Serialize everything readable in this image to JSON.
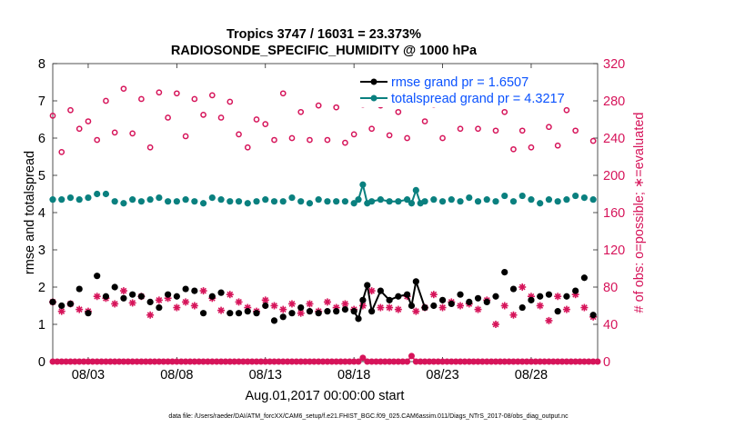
{
  "colors": {
    "rmse": "#000000",
    "totalspread": "#0a807f",
    "obs": "#d6145a",
    "legend_text": "#0a52ff"
  },
  "chart_data": {
    "type": "line",
    "title": "Tropics 3747 / 16031 = 23.373%",
    "subtitle": "RADIOSONDE_SPECIFIC_HUMIDITY @ 1000 hPa",
    "xlabel": "Aug.01,2017 00:00:00 start",
    "ylabel": "rmse and totalspread",
    "y2label": "# of obs: o=possible; ∗=evaluated",
    "footnote": "data file: /Users/raeder/DAI/ATM_forcXX/CAM6_setup/f.e21.FHIST_BGC.f09_025.CAM6assim.011/Diags_NTrS_2017-08/obs_diag_output.nc",
    "xlim": [
      1,
      31.75
    ],
    "ylim": [
      0,
      8
    ],
    "y2lim": [
      0,
      320
    ],
    "x_step_days": 0.25,
    "xticks": [
      3,
      8,
      13,
      18,
      23,
      28
    ],
    "xtick_labels": [
      "08/03",
      "08/08",
      "08/13",
      "08/18",
      "08/23",
      "08/28"
    ],
    "yticks": [
      0,
      1,
      2,
      3,
      4,
      5,
      6,
      7,
      8
    ],
    "ytick_labels": [
      "0",
      "1",
      "2",
      "3",
      "4",
      "5",
      "6",
      "7",
      "8"
    ],
    "y2ticks": [
      0,
      40,
      80,
      120,
      160,
      200,
      240,
      280,
      320
    ],
    "y2tick_labels": [
      "0",
      "40",
      "80",
      "120",
      "160",
      "200",
      "240",
      "280",
      "320"
    ],
    "legend": [
      "rmse grand pr = 1.6507",
      "totalspread grand pr = 4.3217"
    ],
    "legend_position": "top-right",
    "series": [
      {
        "name": "rmse",
        "axis": "left",
        "points": [
          [
            1.0,
            1.6
          ],
          [
            1.5,
            1.5
          ],
          [
            2.0,
            1.55
          ],
          [
            2.5,
            1.95
          ],
          [
            3.0,
            1.3
          ],
          [
            3.5,
            2.3
          ],
          [
            4.0,
            1.75
          ],
          [
            4.5,
            2.0
          ],
          [
            5.0,
            1.7
          ],
          [
            5.5,
            1.8
          ],
          [
            6.0,
            1.75
          ],
          [
            6.5,
            1.6
          ],
          [
            7.0,
            1.45
          ],
          [
            7.5,
            1.8
          ],
          [
            8.0,
            1.75
          ],
          [
            8.5,
            1.95
          ],
          [
            9.0,
            1.9
          ],
          [
            9.5,
            1.3
          ],
          [
            10.0,
            1.75
          ],
          [
            10.5,
            1.85
          ],
          [
            11.0,
            1.3
          ],
          [
            11.5,
            1.3
          ],
          [
            12.0,
            1.35
          ],
          [
            12.5,
            1.3
          ],
          [
            13.0,
            1.5
          ],
          [
            13.5,
            1.1
          ],
          [
            14.0,
            1.2
          ],
          [
            14.5,
            1.3
          ],
          [
            15.0,
            1.45
          ],
          [
            15.5,
            1.35
          ],
          [
            16.0,
            1.3
          ],
          [
            16.5,
            1.35
          ],
          [
            17.0,
            1.35
          ],
          [
            17.5,
            1.4
          ],
          [
            18.0,
            1.35
          ],
          [
            18.25,
            1.15
          ],
          [
            18.5,
            1.65
          ],
          [
            18.75,
            2.05
          ],
          [
            19.0,
            1.35
          ],
          [
            19.5,
            1.9
          ],
          [
            20.0,
            1.65
          ],
          [
            20.5,
            1.75
          ],
          [
            21.0,
            1.8
          ],
          [
            21.25,
            1.5
          ],
          [
            21.5,
            2.15
          ],
          [
            22.0,
            1.45
          ],
          [
            22.5,
            1.5
          ],
          [
            23.0,
            1.65
          ],
          [
            23.5,
            1.55
          ],
          [
            24.0,
            1.8
          ],
          [
            24.5,
            1.6
          ],
          [
            25.0,
            1.7
          ],
          [
            25.5,
            1.6
          ],
          [
            26.0,
            1.75
          ],
          [
            26.5,
            2.4
          ],
          [
            27.0,
            1.95
          ],
          [
            27.5,
            1.45
          ],
          [
            28.0,
            1.65
          ],
          [
            28.5,
            1.75
          ],
          [
            29.0,
            1.8
          ],
          [
            29.5,
            1.35
          ],
          [
            30.0,
            1.75
          ],
          [
            30.5,
            1.9
          ],
          [
            31.0,
            2.25
          ],
          [
            31.5,
            1.25
          ]
        ]
      },
      {
        "name": "totalspread",
        "axis": "left",
        "points": [
          [
            1.0,
            4.35
          ],
          [
            1.5,
            4.35
          ],
          [
            2.0,
            4.4
          ],
          [
            2.5,
            4.35
          ],
          [
            3.0,
            4.4
          ],
          [
            3.5,
            4.5
          ],
          [
            4.0,
            4.5
          ],
          [
            4.5,
            4.3
          ],
          [
            5.0,
            4.25
          ],
          [
            5.5,
            4.35
          ],
          [
            6.0,
            4.3
          ],
          [
            6.5,
            4.35
          ],
          [
            7.0,
            4.4
          ],
          [
            7.5,
            4.3
          ],
          [
            8.0,
            4.3
          ],
          [
            8.5,
            4.35
          ],
          [
            9.0,
            4.3
          ],
          [
            9.5,
            4.25
          ],
          [
            10.0,
            4.4
          ],
          [
            10.5,
            4.35
          ],
          [
            11.0,
            4.3
          ],
          [
            11.5,
            4.3
          ],
          [
            12.0,
            4.25
          ],
          [
            12.5,
            4.3
          ],
          [
            13.0,
            4.35
          ],
          [
            13.5,
            4.3
          ],
          [
            14.0,
            4.3
          ],
          [
            14.5,
            4.4
          ],
          [
            15.0,
            4.3
          ],
          [
            15.5,
            4.25
          ],
          [
            16.0,
            4.35
          ],
          [
            16.5,
            4.3
          ],
          [
            17.0,
            4.3
          ],
          [
            17.5,
            4.3
          ],
          [
            18.0,
            4.25
          ],
          [
            18.25,
            4.35
          ],
          [
            18.5,
            4.75
          ],
          [
            18.75,
            4.25
          ],
          [
            19.0,
            4.3
          ],
          [
            19.5,
            4.35
          ],
          [
            20.0,
            4.3
          ],
          [
            20.5,
            4.3
          ],
          [
            21.0,
            4.35
          ],
          [
            21.25,
            4.25
          ],
          [
            21.5,
            4.6
          ],
          [
            21.75,
            4.25
          ],
          [
            22.0,
            4.3
          ],
          [
            22.5,
            4.35
          ],
          [
            23.0,
            4.3
          ],
          [
            23.5,
            4.35
          ],
          [
            24.0,
            4.3
          ],
          [
            24.5,
            4.4
          ],
          [
            25.0,
            4.3
          ],
          [
            25.5,
            4.35
          ],
          [
            26.0,
            4.3
          ],
          [
            26.5,
            4.45
          ],
          [
            27.0,
            4.3
          ],
          [
            27.5,
            4.45
          ],
          [
            28.0,
            4.35
          ],
          [
            28.5,
            4.25
          ],
          [
            29.0,
            4.35
          ],
          [
            29.5,
            4.3
          ],
          [
            30.0,
            4.35
          ],
          [
            30.5,
            4.45
          ],
          [
            31.0,
            4.4
          ],
          [
            31.5,
            4.35
          ]
        ]
      },
      {
        "name": "obs_possible",
        "axis": "right",
        "marker": "circle",
        "points": [
          [
            1.0,
            264
          ],
          [
            1.5,
            225
          ],
          [
            2.0,
            270
          ],
          [
            2.5,
            250
          ],
          [
            3.0,
            258
          ],
          [
            3.5,
            238
          ],
          [
            4.0,
            280
          ],
          [
            4.5,
            246
          ],
          [
            5.0,
            293
          ],
          [
            5.5,
            245
          ],
          [
            6.0,
            282
          ],
          [
            6.5,
            230
          ],
          [
            7.0,
            289
          ],
          [
            7.5,
            262
          ],
          [
            8.0,
            288
          ],
          [
            8.5,
            242
          ],
          [
            9.0,
            282
          ],
          [
            9.5,
            265
          ],
          [
            10.0,
            286
          ],
          [
            10.5,
            262
          ],
          [
            11.0,
            279
          ],
          [
            11.5,
            244
          ],
          [
            12.0,
            230
          ],
          [
            12.5,
            260
          ],
          [
            13.0,
            255
          ],
          [
            13.5,
            238
          ],
          [
            14.0,
            288
          ],
          [
            14.5,
            240
          ],
          [
            15.0,
            268
          ],
          [
            15.5,
            238
          ],
          [
            16.0,
            275
          ],
          [
            16.5,
            238
          ],
          [
            17.0,
            273
          ],
          [
            17.5,
            235
          ],
          [
            18.0,
            244
          ],
          [
            18.5,
            276
          ],
          [
            19.0,
            250
          ],
          [
            19.5,
            275
          ],
          [
            20.0,
            243
          ],
          [
            20.5,
            268
          ],
          [
            21.0,
            240
          ],
          [
            21.5,
            280
          ],
          [
            22.0,
            258
          ],
          [
            22.5,
            276
          ],
          [
            23.0,
            240
          ],
          [
            23.5,
            282
          ],
          [
            24.0,
            250
          ],
          [
            24.5,
            280
          ],
          [
            25.0,
            250
          ],
          [
            25.5,
            279
          ],
          [
            26.0,
            248
          ],
          [
            26.5,
            268
          ],
          [
            27.0,
            228
          ],
          [
            27.5,
            248
          ],
          [
            28.0,
            230
          ],
          [
            28.5,
            279
          ],
          [
            29.0,
            252
          ],
          [
            29.5,
            232
          ],
          [
            30.0,
            270
          ],
          [
            30.5,
            248
          ],
          [
            31.0,
            278
          ],
          [
            31.5,
            237
          ]
        ]
      },
      {
        "name": "obs_evaluated",
        "axis": "right",
        "marker": "asterisk",
        "points": [
          [
            1.0,
            64
          ],
          [
            1.5,
            54
          ],
          [
            2.0,
            62
          ],
          [
            2.5,
            56
          ],
          [
            3.0,
            54
          ],
          [
            3.5,
            70
          ],
          [
            4.0,
            68
          ],
          [
            4.5,
            62
          ],
          [
            5.0,
            76
          ],
          [
            5.5,
            63
          ],
          [
            6.0,
            70
          ],
          [
            6.5,
            50
          ],
          [
            7.0,
            66
          ],
          [
            7.5,
            68
          ],
          [
            8.0,
            58
          ],
          [
            8.5,
            64
          ],
          [
            9.0,
            60
          ],
          [
            9.5,
            76
          ],
          [
            10.0,
            68
          ],
          [
            10.5,
            55
          ],
          [
            11.0,
            72
          ],
          [
            11.5,
            64
          ],
          [
            12.0,
            58
          ],
          [
            12.5,
            54
          ],
          [
            13.0,
            66
          ],
          [
            13.5,
            60
          ],
          [
            14.0,
            56
          ],
          [
            14.5,
            62
          ],
          [
            15.0,
            52
          ],
          [
            15.5,
            62
          ],
          [
            16.0,
            54
          ],
          [
            16.5,
            64
          ],
          [
            17.0,
            58
          ],
          [
            17.5,
            62
          ],
          [
            18.0,
            56
          ],
          [
            18.5,
            60
          ],
          [
            19.0,
            76
          ],
          [
            19.5,
            58
          ],
          [
            20.0,
            58
          ],
          [
            20.5,
            56
          ],
          [
            21.0,
            70
          ],
          [
            21.5,
            54
          ],
          [
            22.0,
            58
          ],
          [
            22.5,
            72
          ],
          [
            23.0,
            58
          ],
          [
            23.5,
            64
          ],
          [
            24.0,
            60
          ],
          [
            24.5,
            62
          ],
          [
            25.0,
            56
          ],
          [
            25.5,
            66
          ],
          [
            26.0,
            40
          ],
          [
            26.5,
            60
          ],
          [
            27.0,
            50
          ],
          [
            27.5,
            80
          ],
          [
            28.0,
            70
          ],
          [
            28.5,
            60
          ],
          [
            29.0,
            44
          ],
          [
            29.5,
            70
          ],
          [
            30.0,
            56
          ],
          [
            30.5,
            72
          ],
          [
            31.0,
            58
          ],
          [
            31.5,
            48
          ]
        ]
      }
    ],
    "zero_line_peaks": [
      [
        18.5,
        0.1
      ],
      [
        21.25,
        0.15
      ]
    ]
  }
}
